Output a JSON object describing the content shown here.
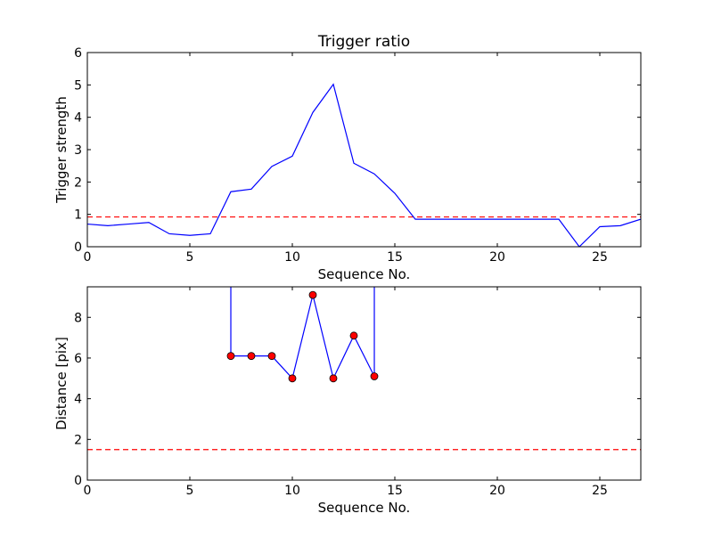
{
  "colors": {
    "line": "#0000ff",
    "threshold": "#ff0000",
    "marker_fill": "#ff0000",
    "marker_edge": "#000000",
    "axes": "#000000",
    "background": "#ffffff"
  },
  "chart_data": [
    {
      "type": "line",
      "title": "Trigger ratio",
      "xlabel": "Sequence No.",
      "ylabel": "Trigger strength",
      "xlim": [
        0,
        27
      ],
      "ylim": [
        0,
        6
      ],
      "xticks": [
        0,
        5,
        10,
        15,
        20,
        25
      ],
      "yticks": [
        0,
        1,
        2,
        3,
        4,
        5,
        6
      ],
      "grid": false,
      "series": [
        {
          "x": [
            0,
            1,
            2,
            3,
            4,
            5,
            6,
            7,
            8,
            9,
            10,
            11,
            12,
            13,
            14,
            15,
            16,
            17,
            18,
            19,
            20,
            21,
            22,
            23,
            24,
            25,
            26,
            27
          ],
          "values": [
            0.7,
            0.65,
            0.7,
            0.75,
            0.4,
            0.35,
            0.4,
            1.7,
            1.78,
            2.48,
            2.8,
            4.15,
            5.02,
            2.58,
            2.25,
            1.65,
            0.85,
            0.85,
            0.85,
            0.85,
            0.85,
            0.85,
            0.85,
            0.85,
            0.0,
            0.62,
            0.65,
            0.85
          ],
          "markers": false
        }
      ],
      "threshold": 0.92
    },
    {
      "type": "line",
      "xlabel": "Sequence No.",
      "ylabel": "Distance [pix]",
      "xlim": [
        0,
        27
      ],
      "ylim": [
        0,
        9.5
      ],
      "xticks": [
        0,
        5,
        10,
        15,
        20,
        25
      ],
      "yticks": [
        0,
        2,
        4,
        6,
        8
      ],
      "grid": false,
      "series": [
        {
          "x": [
            7,
            8,
            9,
            10,
            11,
            12,
            13,
            14
          ],
          "values": [
            6.1,
            6.1,
            6.1,
            5.0,
            9.1,
            5.0,
            7.1,
            5.1
          ],
          "markers": true,
          "lead_in_x": 7,
          "lead_out_x": 14
        }
      ],
      "threshold": 1.5
    }
  ]
}
